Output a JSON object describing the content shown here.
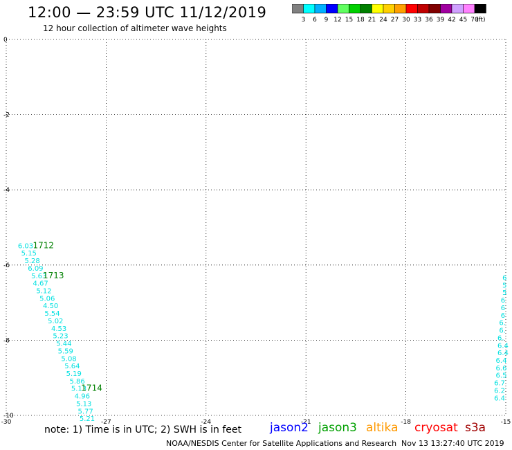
{
  "header": {
    "title": "12:00 — 23:59 UTC 11/12/2019",
    "subtitle": "12 hour collection of altimeter wave heights"
  },
  "legend": {
    "labels": [
      "3",
      "6",
      "9",
      "12",
      "15",
      "18",
      "21",
      "24",
      "27",
      "30",
      "33",
      "36",
      "39",
      "42",
      "45",
      "70"
    ],
    "unit": "(ft)",
    "colors": [
      "#808080",
      "#00ffff",
      "#00b0ff",
      "#0000ff",
      "#60ff60",
      "#00d000",
      "#008000",
      "#ffff00",
      "#ffd000",
      "#ffa000",
      "#ff0000",
      "#c00000",
      "#800000",
      "#a000a0",
      "#d0a0ff",
      "#ff80ff",
      "#000000"
    ]
  },
  "axes": {
    "x_ticks": [
      "-30",
      "-27",
      "-24",
      "-21",
      "-18",
      "-15"
    ],
    "y_ticks": [
      "0",
      "-2",
      "-4",
      "-6",
      "-8",
      "-10"
    ]
  },
  "footer": {
    "note": "note: 1) Time is in UTC; 2) SWH is in feet",
    "satellites": [
      {
        "name": "jason2",
        "color": "#0000ff"
      },
      {
        "name": "jason3",
        "color": "#00a000"
      },
      {
        "name": "altika",
        "color": "#ff9900"
      },
      {
        "name": "cryosat",
        "color": "#ff0000"
      },
      {
        "name": "s3a",
        "color": "#a00000"
      }
    ],
    "credit": "NOAA/NESDIS Center for Satellite Applications and Research",
    "timestamp": "Nov 13 13:27:40 UTC 2019"
  },
  "chart_data": {
    "type": "scatter",
    "xlim": [
      -30,
      -15
    ],
    "ylim": [
      -10,
      0
    ],
    "grid": true,
    "wave_color": "#00e0e0",
    "time_color": "#008000",
    "track_left": [
      {
        "lon": -29.65,
        "lat": -5.55,
        "v": "6.03"
      },
      {
        "lon": -29.55,
        "lat": -5.75,
        "v": "5.15"
      },
      {
        "lon": -29.45,
        "lat": -5.95,
        "v": "5.28"
      },
      {
        "lon": -29.35,
        "lat": -6.15,
        "v": "6.09"
      },
      {
        "lon": -29.25,
        "lat": -6.35,
        "v": "5.63"
      },
      {
        "lon": -29.2,
        "lat": -6.55,
        "v": "4.67"
      },
      {
        "lon": -29.1,
        "lat": -6.75,
        "v": "5.12"
      },
      {
        "lon": -29.0,
        "lat": -6.95,
        "v": "5.06"
      },
      {
        "lon": -28.9,
        "lat": -7.15,
        "v": "4.50"
      },
      {
        "lon": -28.85,
        "lat": -7.35,
        "v": "5.54"
      },
      {
        "lon": -28.75,
        "lat": -7.55,
        "v": "5.02"
      },
      {
        "lon": -28.65,
        "lat": -7.75,
        "v": "4.53"
      },
      {
        "lon": -28.6,
        "lat": -7.95,
        "v": "5.23"
      },
      {
        "lon": -28.5,
        "lat": -8.15,
        "v": "5.44"
      },
      {
        "lon": -28.45,
        "lat": -8.35,
        "v": "5.59"
      },
      {
        "lon": -28.35,
        "lat": -8.55,
        "v": "5.08"
      },
      {
        "lon": -28.25,
        "lat": -8.75,
        "v": "5.64"
      },
      {
        "lon": -28.2,
        "lat": -8.95,
        "v": "5.19"
      },
      {
        "lon": -28.1,
        "lat": -9.15,
        "v": "5.86"
      },
      {
        "lon": -28.05,
        "lat": -9.35,
        "v": "5.13"
      },
      {
        "lon": -27.95,
        "lat": -9.55,
        "v": "4.96"
      },
      {
        "lon": -27.9,
        "lat": -9.75,
        "v": "5.13"
      },
      {
        "lon": -27.85,
        "lat": -9.95,
        "v": "5.77"
      },
      {
        "lon": -27.8,
        "lat": -10.15,
        "v": "5.21"
      }
    ],
    "track_right": [
      {
        "lon": -15.1,
        "lat": -6.4,
        "v": "6"
      },
      {
        "lon": -15.1,
        "lat": -6.6,
        "v": "5"
      },
      {
        "lon": -15.1,
        "lat": -6.8,
        "v": "5"
      },
      {
        "lon": -15.15,
        "lat": -7.0,
        "v": "6"
      },
      {
        "lon": -15.15,
        "lat": -7.2,
        "v": "6"
      },
      {
        "lon": -15.15,
        "lat": -7.4,
        "v": "6"
      },
      {
        "lon": -15.2,
        "lat": -7.6,
        "v": "6."
      },
      {
        "lon": -15.2,
        "lat": -7.8,
        "v": "6."
      },
      {
        "lon": -15.25,
        "lat": -8.0,
        "v": "6."
      },
      {
        "lon": -15.25,
        "lat": -8.2,
        "v": "6.4"
      },
      {
        "lon": -15.25,
        "lat": -8.4,
        "v": "6.4"
      },
      {
        "lon": -15.3,
        "lat": -8.6,
        "v": "6.4"
      },
      {
        "lon": -15.3,
        "lat": -8.8,
        "v": "6.6"
      },
      {
        "lon": -15.3,
        "lat": -9.0,
        "v": "6.5"
      },
      {
        "lon": -15.35,
        "lat": -9.2,
        "v": "6.7"
      },
      {
        "lon": -15.35,
        "lat": -9.4,
        "v": "6.2"
      },
      {
        "lon": -15.35,
        "lat": -9.6,
        "v": "6.4"
      }
    ],
    "time_labels": [
      {
        "lon": -29.2,
        "lat": -5.55,
        "t": "1712"
      },
      {
        "lon": -28.9,
        "lat": -6.35,
        "t": "1713"
      },
      {
        "lon": -27.75,
        "lat": -9.35,
        "t": "1714"
      }
    ]
  }
}
